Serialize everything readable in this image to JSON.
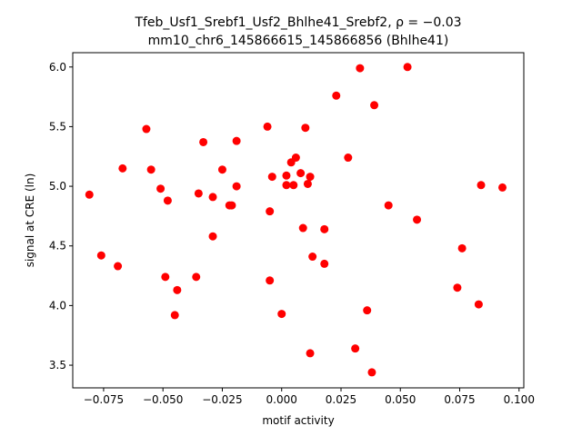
{
  "chart_data": {
    "type": "scatter",
    "title_line1": "Tfeb_Usf1_Srebf1_Usf2_Bhlhe41_Srebf2, ρ = −0.03",
    "title_line2": "mm10_chr6_145866615_145866856 (Bhlhe41)",
    "xlabel": "motif activity",
    "ylabel": "signal at CRE (ln)",
    "xlim": [
      -0.088,
      0.102
    ],
    "ylim": [
      3.31,
      6.12
    ],
    "xticks": [
      -0.075,
      -0.05,
      -0.025,
      0.0,
      0.025,
      0.05,
      0.075,
      0.1
    ],
    "xtick_labels": [
      "−0.075",
      "−0.050",
      "−0.025",
      "0.000",
      "0.025",
      "0.050",
      "0.075",
      "0.100"
    ],
    "yticks": [
      3.5,
      4.0,
      4.5,
      5.0,
      5.5,
      6.0
    ],
    "ytick_labels": [
      "3.5",
      "4.0",
      "4.5",
      "5.0",
      "5.5",
      "6.0"
    ],
    "grid": false,
    "marker_color": "#ff0000",
    "points": [
      {
        "x": -0.081,
        "y": 4.93
      },
      {
        "x": -0.076,
        "y": 4.42
      },
      {
        "x": -0.069,
        "y": 4.33
      },
      {
        "x": -0.067,
        "y": 5.15
      },
      {
        "x": -0.057,
        "y": 5.48
      },
      {
        "x": -0.055,
        "y": 5.14
      },
      {
        "x": -0.051,
        "y": 4.98
      },
      {
        "x": -0.049,
        "y": 4.24
      },
      {
        "x": -0.048,
        "y": 4.88
      },
      {
        "x": -0.045,
        "y": 3.92
      },
      {
        "x": -0.044,
        "y": 4.13
      },
      {
        "x": -0.036,
        "y": 4.24
      },
      {
        "x": -0.035,
        "y": 4.94
      },
      {
        "x": -0.033,
        "y": 5.37
      },
      {
        "x": -0.029,
        "y": 4.91
      },
      {
        "x": -0.029,
        "y": 4.58
      },
      {
        "x": -0.025,
        "y": 5.14
      },
      {
        "x": -0.022,
        "y": 4.84
      },
      {
        "x": -0.021,
        "y": 4.84
      },
      {
        "x": -0.019,
        "y": 5.38
      },
      {
        "x": -0.019,
        "y": 5.0
      },
      {
        "x": -0.006,
        "y": 5.5
      },
      {
        "x": -0.005,
        "y": 4.79
      },
      {
        "x": -0.005,
        "y": 4.21
      },
      {
        "x": -0.004,
        "y": 5.08
      },
      {
        "x": 0.0,
        "y": 3.93
      },
      {
        "x": 0.002,
        "y": 5.09
      },
      {
        "x": 0.002,
        "y": 5.01
      },
      {
        "x": 0.004,
        "y": 5.2
      },
      {
        "x": 0.005,
        "y": 5.01
      },
      {
        "x": 0.006,
        "y": 5.24
      },
      {
        "x": 0.008,
        "y": 5.11
      },
      {
        "x": 0.009,
        "y": 4.65
      },
      {
        "x": 0.01,
        "y": 5.49
      },
      {
        "x": 0.011,
        "y": 5.02
      },
      {
        "x": 0.012,
        "y": 5.08
      },
      {
        "x": 0.012,
        "y": 3.6
      },
      {
        "x": 0.013,
        "y": 4.41
      },
      {
        "x": 0.018,
        "y": 4.64
      },
      {
        "x": 0.018,
        "y": 4.35
      },
      {
        "x": 0.023,
        "y": 5.76
      },
      {
        "x": 0.028,
        "y": 5.24
      },
      {
        "x": 0.031,
        "y": 3.64
      },
      {
        "x": 0.033,
        "y": 5.99
      },
      {
        "x": 0.036,
        "y": 3.96
      },
      {
        "x": 0.038,
        "y": 3.44
      },
      {
        "x": 0.039,
        "y": 5.68
      },
      {
        "x": 0.045,
        "y": 4.84
      },
      {
        "x": 0.053,
        "y": 6.0
      },
      {
        "x": 0.057,
        "y": 4.72
      },
      {
        "x": 0.074,
        "y": 4.15
      },
      {
        "x": 0.076,
        "y": 4.48
      },
      {
        "x": 0.083,
        "y": 4.01
      },
      {
        "x": 0.084,
        "y": 5.01
      },
      {
        "x": 0.093,
        "y": 4.99
      }
    ]
  }
}
